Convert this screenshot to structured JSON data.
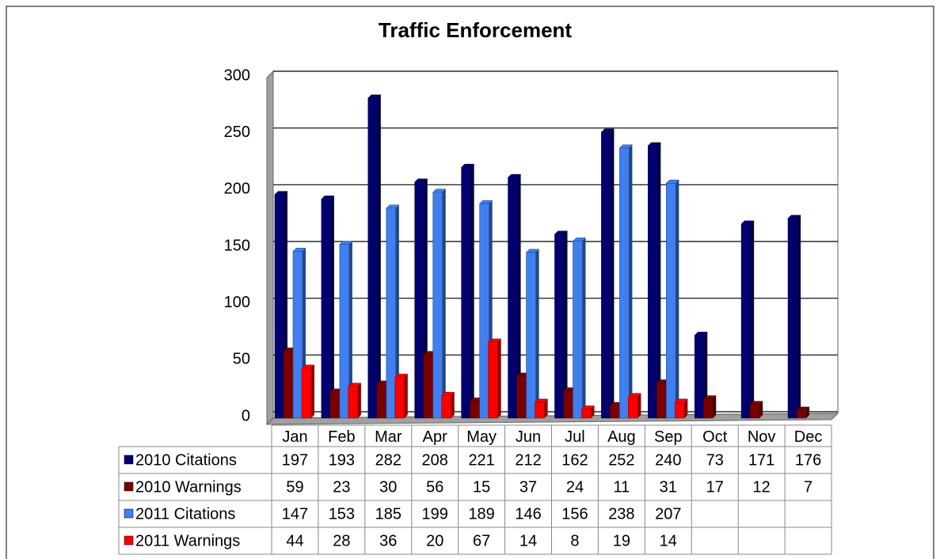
{
  "chart_data": {
    "type": "bar",
    "title": "Traffic Enforcement",
    "categories": [
      "Jan",
      "Feb",
      "Mar",
      "Apr",
      "May",
      "Jun",
      "Jul",
      "Aug",
      "Sep",
      "Oct",
      "Nov",
      "Dec"
    ],
    "series": [
      {
        "name": "2010 Citations",
        "color": "#000070",
        "values": [
          197,
          193,
          282,
          208,
          221,
          212,
          162,
          252,
          240,
          73,
          171,
          176
        ]
      },
      {
        "name": "2010 Warnings",
        "color": "#7a0000",
        "values": [
          59,
          23,
          30,
          56,
          15,
          37,
          24,
          11,
          31,
          17,
          12,
          7
        ]
      },
      {
        "name": "2011 Citations",
        "color": "#3f7ff0",
        "values": [
          147,
          153,
          185,
          199,
          189,
          146,
          156,
          238,
          207,
          null,
          null,
          null
        ]
      },
      {
        "name": "2011 Warnings",
        "color": "#ff0000",
        "values": [
          44,
          28,
          36,
          20,
          67,
          14,
          8,
          19,
          14,
          null,
          null,
          null
        ]
      }
    ],
    "ylim": [
      0,
      300
    ],
    "yticks": [
      0,
      50,
      100,
      150,
      200,
      250,
      300
    ],
    "grid": true
  }
}
